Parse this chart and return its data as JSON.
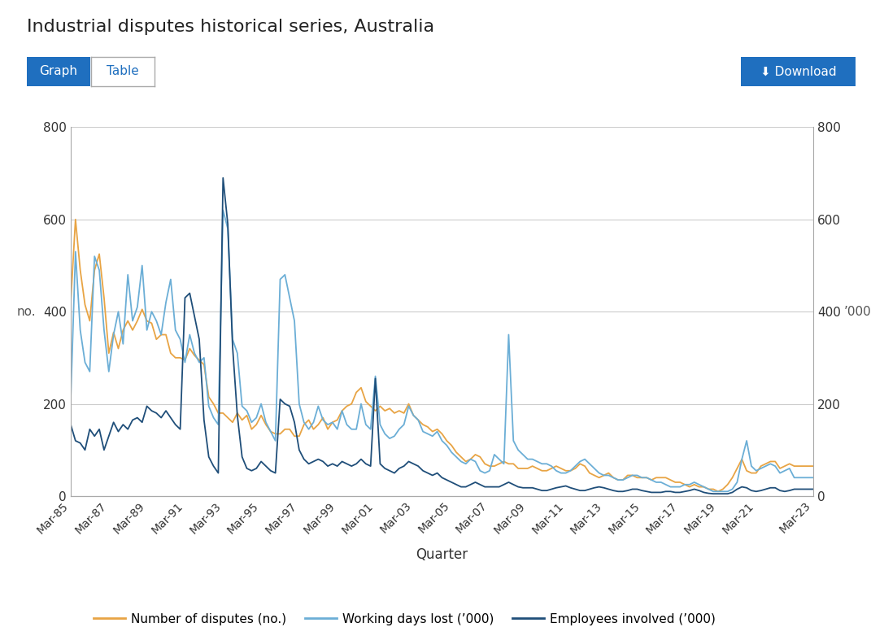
{
  "title": "Industrial disputes historical series, Australia",
  "xlabel": "Quarter",
  "ylabel_left": "no.",
  "ylabel_right": "’000",
  "background_color": "#ffffff",
  "plot_bg_color": "#ffffff",
  "grid_color": "#cccccc",
  "series_colors": {
    "disputes": "#E8A444",
    "days_lost": "#6BAED6",
    "employees": "#1F4E79"
  },
  "legend_labels": [
    "Number of disputes (no.)",
    "Working days lost (’000)",
    "Employees involved (’000)"
  ],
  "ylim": [
    0,
    800
  ],
  "yticks": [
    0,
    200,
    400,
    600,
    800
  ],
  "xtick_labels": [
    "Mar-85",
    "Mar-87",
    "Mar-89",
    "Mar-91",
    "Mar-93",
    "Mar-95",
    "Mar-97",
    "Mar-99",
    "Mar-01",
    "Mar-03",
    "Mar-05",
    "Mar-07",
    "Mar-09",
    "Mar-11",
    "Mar-13",
    "Mar-15",
    "Mar-17",
    "Mar-19",
    "Mar-21",
    "Mar-23"
  ],
  "disputes": [
    420,
    600,
    490,
    415,
    380,
    490,
    525,
    430,
    310,
    355,
    320,
    360,
    380,
    360,
    380,
    405,
    380,
    375,
    340,
    350,
    350,
    310,
    300,
    300,
    295,
    320,
    305,
    295,
    285,
    215,
    200,
    180,
    180,
    170,
    160,
    180,
    165,
    175,
    145,
    155,
    175,
    155,
    140,
    135,
    135,
    145,
    145,
    130,
    130,
    155,
    165,
    145,
    155,
    170,
    145,
    160,
    165,
    185,
    195,
    200,
    225,
    235,
    205,
    195,
    185,
    195,
    185,
    190,
    180,
    185,
    180,
    200,
    175,
    165,
    155,
    150,
    140,
    145,
    135,
    120,
    110,
    95,
    85,
    75,
    80,
    90,
    85,
    70,
    65,
    65,
    70,
    75,
    70,
    70,
    60,
    60,
    60,
    65,
    60,
    55,
    55,
    60,
    65,
    60,
    55,
    55,
    60,
    70,
    65,
    50,
    45,
    40,
    45,
    50,
    40,
    35,
    35,
    45,
    45,
    40,
    40,
    40,
    35,
    40,
    40,
    40,
    35,
    30,
    30,
    25,
    20,
    25,
    20,
    20,
    15,
    15,
    10,
    15,
    25,
    40,
    60,
    80,
    55,
    50,
    50,
    65,
    70,
    75,
    75,
    60,
    65,
    70,
    65
  ],
  "days_lost": [
    210,
    530,
    360,
    290,
    270,
    520,
    490,
    360,
    270,
    350,
    400,
    330,
    480,
    380,
    410,
    500,
    360,
    400,
    380,
    350,
    420,
    470,
    360,
    340,
    290,
    350,
    310,
    290,
    300,
    195,
    170,
    155,
    620,
    580,
    340,
    310,
    195,
    185,
    160,
    170,
    200,
    160,
    140,
    120,
    470,
    480,
    430,
    380,
    200,
    160,
    145,
    160,
    195,
    165,
    155,
    160,
    145,
    185,
    155,
    145,
    145,
    200,
    155,
    145,
    260,
    155,
    135,
    125,
    130,
    145,
    155,
    195,
    175,
    165,
    140,
    135,
    130,
    140,
    120,
    110,
    95,
    85,
    75,
    70,
    80,
    75,
    55,
    50,
    55,
    90,
    80,
    70,
    350,
    120,
    100,
    90,
    80,
    80,
    75,
    70,
    70,
    65,
    55,
    50,
    50,
    55,
    65,
    75,
    80,
    70,
    60,
    50,
    45,
    45,
    40,
    35,
    35,
    40,
    45,
    45,
    40,
    40,
    35,
    30,
    30,
    25,
    20,
    20,
    20,
    25,
    25,
    30,
    25,
    20,
    15,
    10,
    10,
    10,
    10,
    15,
    30,
    80,
    120,
    65,
    55,
    60,
    65,
    70,
    65,
    50,
    55,
    60,
    40
  ],
  "employees": [
    155,
    120,
    115,
    100,
    145,
    130,
    145,
    100,
    130,
    160,
    140,
    155,
    145,
    165,
    170,
    160,
    195,
    185,
    180,
    170,
    185,
    170,
    155,
    145,
    430,
    440,
    390,
    340,
    165,
    85,
    65,
    50,
    690,
    590,
    325,
    175,
    85,
    60,
    55,
    60,
    75,
    65,
    55,
    50,
    210,
    200,
    195,
    160,
    100,
    80,
    70,
    75,
    80,
    75,
    65,
    70,
    65,
    75,
    70,
    65,
    70,
    80,
    70,
    65,
    255,
    70,
    60,
    55,
    50,
    60,
    65,
    75,
    70,
    65,
    55,
    50,
    45,
    50,
    40,
    35,
    30,
    25,
    20,
    20,
    25,
    30,
    25,
    20,
    20,
    20,
    20,
    25,
    30,
    25,
    20,
    18,
    18,
    18,
    15,
    12,
    12,
    15,
    18,
    20,
    22,
    18,
    15,
    12,
    12,
    15,
    18,
    20,
    18,
    15,
    12,
    10,
    10,
    12,
    15,
    15,
    12,
    10,
    8,
    8,
    8,
    10,
    10,
    8,
    8,
    10,
    12,
    15,
    12,
    8,
    6,
    5,
    5,
    5,
    5,
    8,
    15,
    20,
    18,
    12,
    10,
    12,
    15,
    18,
    18,
    12,
    10,
    12,
    15
  ]
}
